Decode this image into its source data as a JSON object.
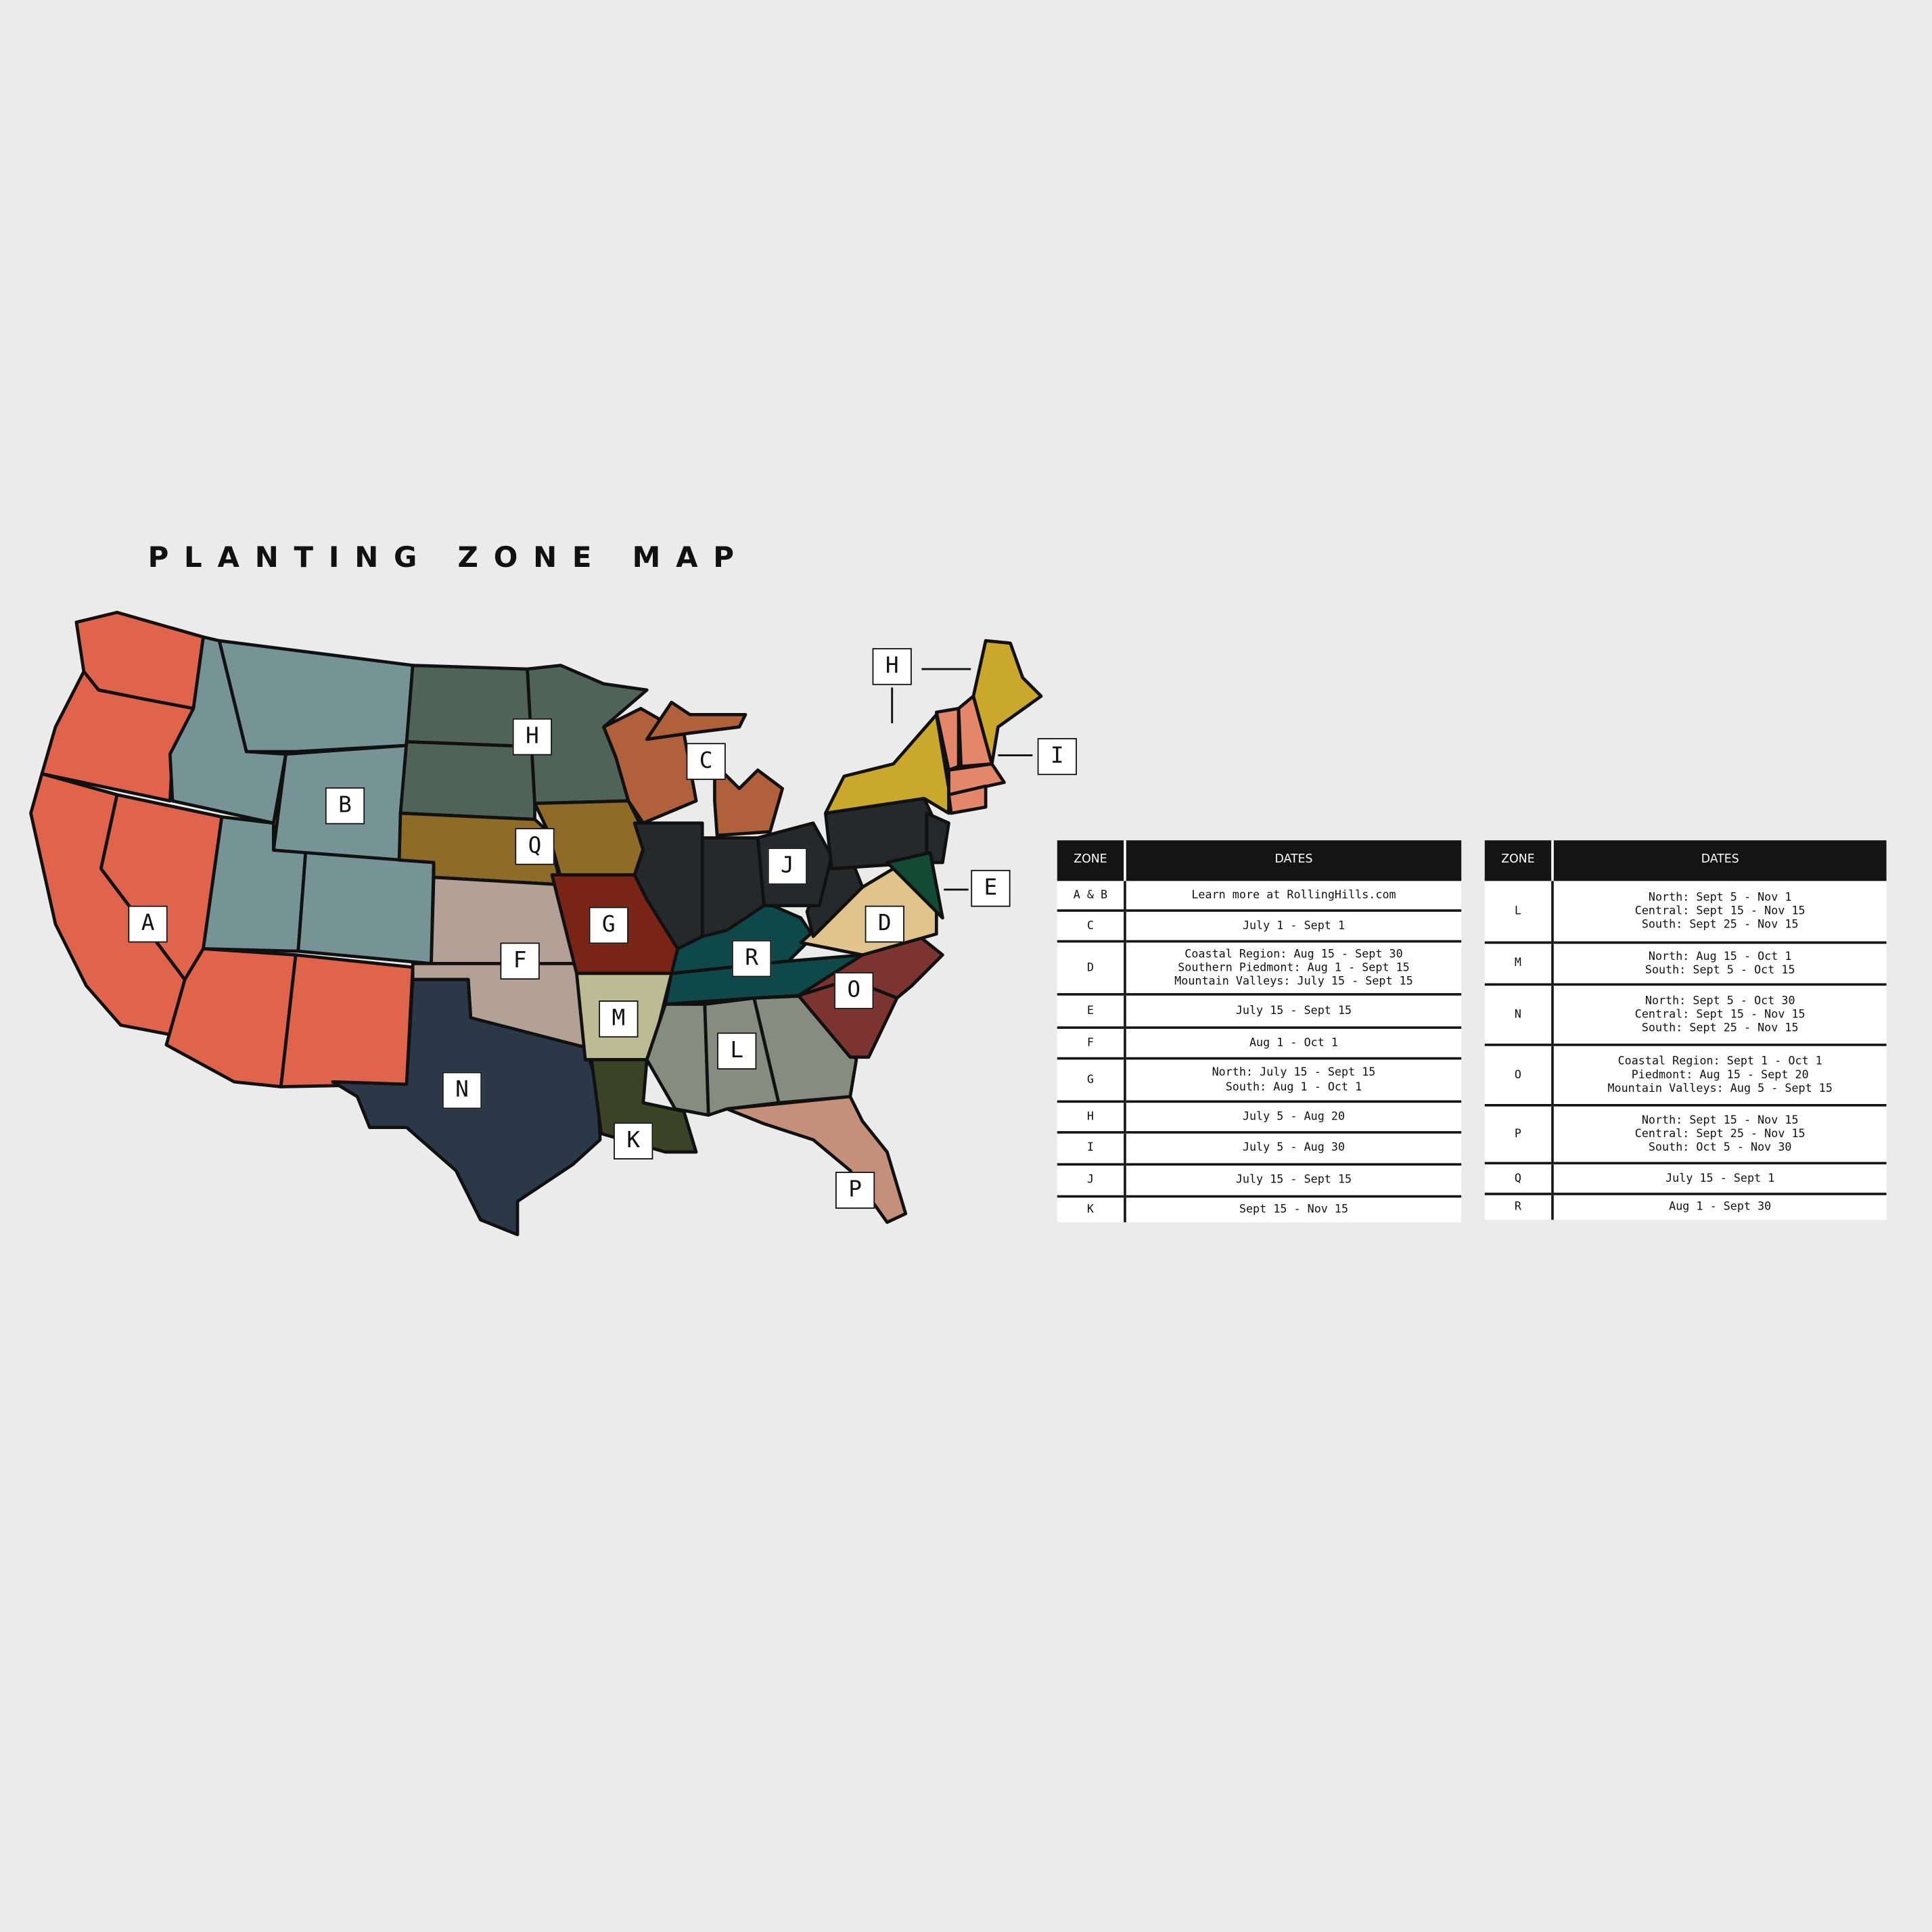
{
  "title": "PLANTING ZONE MAP",
  "zone_colors": {
    "A": "#e0644c",
    "B": "#769496",
    "C": "#b0603a",
    "D": "#e0c48c",
    "E": "#124a36",
    "F": "#b3a096",
    "G": "#7a2418",
    "H": "#4f6358",
    "H2": "#c9a82c",
    "I": "#e4866a",
    "J": "#25292c",
    "K": "#3c4226",
    "L": "#888b80",
    "M": "#bcbb94",
    "N": "#2c3848",
    "O": "#7b3430",
    "P": "#c4907c",
    "Q": "#8f6b28",
    "R": "#0e4848"
  },
  "map_labels": [
    "H",
    "H",
    "I",
    "C",
    "B",
    "Q",
    "J",
    "E",
    "A",
    "G",
    "D",
    "R",
    "F",
    "O",
    "M",
    "L",
    "N",
    "K",
    "P"
  ],
  "table_left": {
    "headers": [
      "ZONE",
      "DATES"
    ],
    "rows": [
      {
        "zone": "A & B",
        "dates": [
          "Learn more at RollingHills.com"
        ]
      },
      {
        "zone": "C",
        "dates": [
          "July 1 - Sept 1"
        ]
      },
      {
        "zone": "D",
        "dates": [
          "Coastal Region: Aug 15 - Sept 30",
          "Southern Piedmont: Aug 1 - Sept 15",
          "Mountain Valleys: July 15 - Sept 15"
        ]
      },
      {
        "zone": "E",
        "dates": [
          "July 15 - Sept 15"
        ]
      },
      {
        "zone": "F",
        "dates": [
          "Aug 1 - Oct 1"
        ]
      },
      {
        "zone": "G",
        "dates": [
          "North: July 15 - Sept 15",
          "South: Aug 1 - Oct 1"
        ]
      },
      {
        "zone": "H",
        "dates": [
          "July 5 - Aug 20"
        ]
      },
      {
        "zone": "I",
        "dates": [
          "July 5 - Aug 30"
        ]
      },
      {
        "zone": "J",
        "dates": [
          "July 15 - Sept 15"
        ]
      },
      {
        "zone": "K",
        "dates": [
          "Sept 15 - Nov 15"
        ]
      }
    ]
  },
  "table_right": {
    "headers": [
      "ZONE",
      "DATES"
    ],
    "rows": [
      {
        "zone": "L",
        "dates": [
          "North: Sept 5 - Nov 1",
          "Central: Sept 15 - Nov 15",
          "South: Sept 25 - Nov 15"
        ]
      },
      {
        "zone": "M",
        "dates": [
          "North: Aug 15 - Oct 1",
          "South: Sept 5 - Oct 15"
        ]
      },
      {
        "zone": "N",
        "dates": [
          "North: Sept 5 - Oct 30",
          "Central: Sept 15 - Nov 15",
          "South: Sept 25 - Nov 15"
        ]
      },
      {
        "zone": "O",
        "dates": [
          "Coastal Region: Sept 1 - Oct 1",
          "Piedmont: Aug 15 - Sept 20",
          "Mountain Valleys: Aug 5 - Sept 15"
        ]
      },
      {
        "zone": "P",
        "dates": [
          "North: Sept 15 - Nov 15",
          "Central: Sept 25 - Nov 15",
          "South: Oct 5 - Nov 30"
        ]
      },
      {
        "zone": "Q",
        "dates": [
          "July 15 - Sept 1"
        ]
      },
      {
        "zone": "R",
        "dates": [
          "Aug 1 - Sept 30"
        ]
      }
    ]
  }
}
